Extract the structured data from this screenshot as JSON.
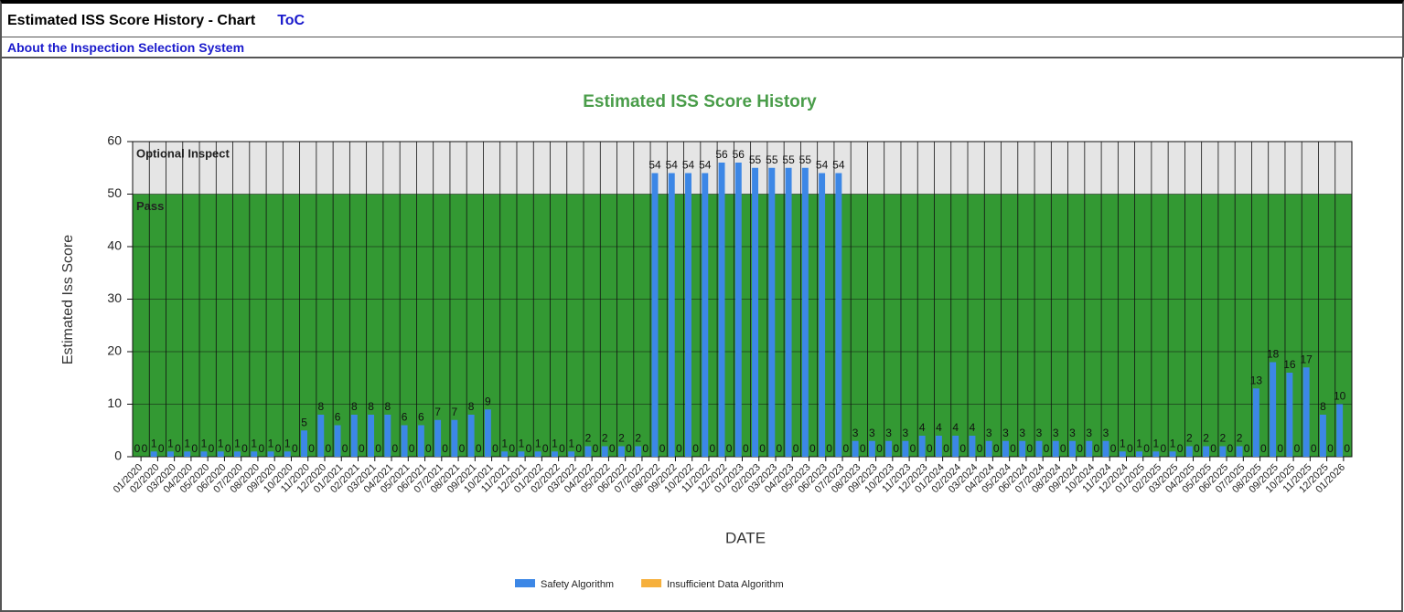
{
  "header": {
    "title": "Estimated ISS Score History - Chart",
    "toc": "ToC",
    "link": "About the Inspection Selection System"
  },
  "chart_data": {
    "type": "bar",
    "title": "Estimated ISS Score History",
    "x_label": "DATE",
    "y_label": "Estimated Iss Score",
    "categories": [
      "01/2020",
      "02/2020",
      "03/2020",
      "04/2020",
      "05/2020",
      "06/2020",
      "07/2020",
      "08/2020",
      "09/2020",
      "10/2020",
      "11/2020",
      "12/2020",
      "01/2021",
      "02/2021",
      "03/2021",
      "04/2021",
      "05/2021",
      "06/2021",
      "07/2021",
      "08/2021",
      "09/2021",
      "10/2021",
      "11/2021",
      "12/2021",
      "01/2022",
      "02/2022",
      "03/2022",
      "04/2022",
      "05/2022",
      "06/2022",
      "07/2022",
      "08/2022",
      "09/2022",
      "10/2022",
      "11/2022",
      "12/2022",
      "01/2023",
      "02/2023",
      "03/2023",
      "04/2023",
      "05/2023",
      "06/2023",
      "07/2023",
      "08/2023",
      "09/2023",
      "10/2023",
      "11/2023",
      "12/2023",
      "01/2024",
      "02/2024",
      "03/2024",
      "04/2024",
      "05/2024",
      "06/2024",
      "07/2024",
      "08/2024",
      "09/2024",
      "10/2024",
      "11/2024",
      "12/2024",
      "01/2025",
      "02/2025",
      "03/2025",
      "04/2025",
      "05/2025",
      "06/2025",
      "07/2025",
      "08/2025",
      "09/2025",
      "10/2025",
      "11/2025",
      "12/2025",
      "01/2026"
    ],
    "series": [
      {
        "name": "Safety Algorithm",
        "color": "#3c87e6",
        "values": [
          0,
          1,
          1,
          1,
          1,
          1,
          1,
          1,
          1,
          1,
          5,
          8,
          6,
          8,
          8,
          8,
          6,
          6,
          7,
          7,
          8,
          9,
          1,
          1,
          1,
          1,
          1,
          2,
          2,
          2,
          2,
          54,
          54,
          54,
          54,
          56,
          56,
          55,
          55,
          55,
          55,
          54,
          54,
          3,
          3,
          3,
          3,
          4,
          4,
          4,
          4,
          3,
          3,
          3,
          3,
          3,
          3,
          3,
          3,
          1,
          1,
          1,
          1,
          2,
          2,
          2,
          2,
          13,
          18,
          16,
          17,
          8,
          10
        ]
      },
      {
        "name": "Insufficient Data Algorithm",
        "color": "#f6b03c",
        "values": [
          0,
          0,
          0,
          0,
          0,
          0,
          0,
          0,
          0,
          0,
          0,
          0,
          0,
          0,
          0,
          0,
          0,
          0,
          0,
          0,
          0,
          0,
          0,
          0,
          0,
          0,
          0,
          0,
          0,
          0,
          0,
          0,
          0,
          0,
          0,
          0,
          0,
          0,
          0,
          0,
          0,
          0,
          0,
          0,
          0,
          0,
          0,
          0,
          0,
          0,
          0,
          0,
          0,
          0,
          0,
          0,
          0,
          0,
          0,
          0,
          0,
          0,
          0,
          0,
          0,
          0,
          0,
          0,
          0,
          0,
          0,
          0,
          0
        ]
      }
    ],
    "bands": [
      {
        "label": "Pass",
        "from": 0,
        "to": 50,
        "color": "#339933"
      },
      {
        "label": "Optional Inspect",
        "from": 50,
        "to": 60,
        "color": "#e5e5e5"
      }
    ],
    "ylim": [
      0,
      60
    ],
    "yticks": [
      0,
      10,
      20,
      30,
      40,
      50,
      60
    ],
    "grid": true
  }
}
